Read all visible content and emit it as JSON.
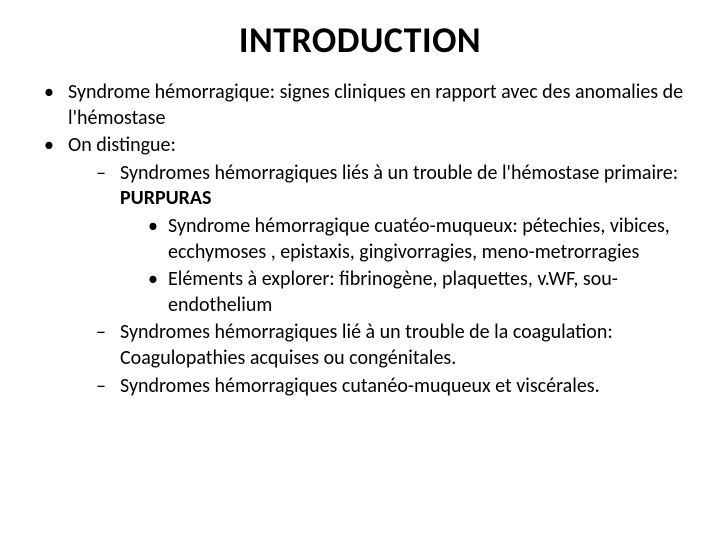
{
  "styling": {
    "background_color": "#ffffff",
    "title_color": "#000000",
    "body_text_color": "#000000",
    "title_fontsize": 36,
    "body_fontsize": 20,
    "font_family": "Calibri",
    "bullet_l1": "•",
    "bullet_l2": "–",
    "bullet_l3": "•"
  },
  "title": "INTRODUCTION",
  "bullets": {
    "b1": "Syndrome hémorragique: signes cliniques en rapport avec des anomalies de l'hémostase",
    "b2": "On distingue:",
    "b2_1_pre": "Syndromes hémorragiques liés  à un trouble de l'hémostase primaire: ",
    "b2_1_bold": "PURPURAS",
    "b2_1_a": "Syndrome hémorragique cuatéo-muqueux: pétechies, vibices, ecchymoses , epistaxis, gingivorragies, meno-metrorragies",
    "b2_1_b": "Eléments à explorer: fibrinogène, plaquettes, v.WF, sou-endothelium",
    "b2_2": "Syndromes hémorragiques lié à un trouble de la coagulation: Coagulopathies acquises ou congénitales.",
    "b2_3": "Syndromes hémorragiques cutanéo-muqueux et viscérales."
  }
}
